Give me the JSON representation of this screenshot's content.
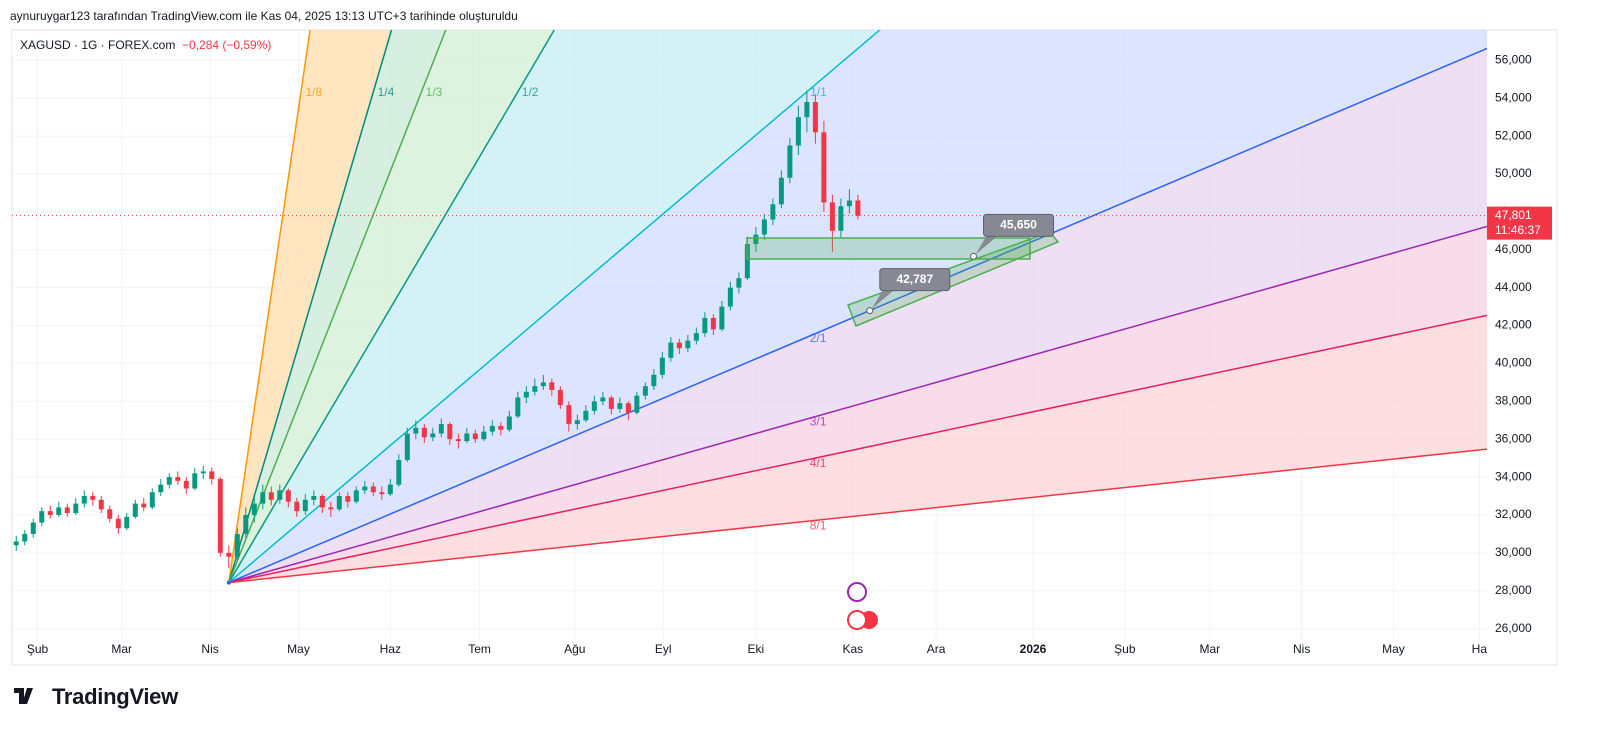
{
  "header": {
    "attribution": "aynuruygar123 tarafından TradingView.com ile Kas 04, 2025 13:13 UTC+3 tarihinde oluşturuldu",
    "logo": "TradingView"
  },
  "chart_data": {
    "type": "candlestick",
    "title": "XAGUSD · 1G · FOREX.com",
    "subtitle": "−0,284 (−0,59%)",
    "up_color": "#089981",
    "down_color": "#f23645",
    "candles": [
      [
        30.4,
        30.9,
        30.1,
        30.6
      ],
      [
        30.6,
        31.2,
        30.4,
        31.0
      ],
      [
        31.0,
        31.8,
        30.8,
        31.6
      ],
      [
        31.6,
        32.4,
        31.4,
        32.2
      ],
      [
        32.2,
        32.5,
        31.8,
        32.0
      ],
      [
        32.0,
        32.7,
        31.9,
        32.4
      ],
      [
        32.4,
        32.6,
        31.9,
        32.1
      ],
      [
        32.1,
        32.9,
        32.0,
        32.6
      ],
      [
        32.6,
        33.3,
        32.4,
        33.0
      ],
      [
        33.0,
        33.2,
        32.5,
        32.8
      ],
      [
        32.8,
        33.0,
        32.1,
        32.3
      ],
      [
        32.3,
        32.5,
        31.6,
        31.8
      ],
      [
        31.8,
        32.0,
        31.0,
        31.3
      ],
      [
        31.3,
        32.1,
        31.2,
        31.9
      ],
      [
        31.9,
        32.8,
        31.8,
        32.6
      ],
      [
        32.6,
        32.9,
        32.2,
        32.4
      ],
      [
        32.4,
        33.4,
        32.3,
        33.2
      ],
      [
        33.2,
        33.9,
        33.0,
        33.6
      ],
      [
        33.6,
        34.2,
        33.4,
        34.0
      ],
      [
        34.0,
        34.3,
        33.6,
        33.8
      ],
      [
        33.8,
        34.0,
        33.1,
        33.4
      ],
      [
        33.4,
        34.5,
        33.3,
        34.2
      ],
      [
        34.2,
        34.6,
        33.9,
        34.3
      ],
      [
        34.3,
        34.5,
        33.6,
        33.9
      ],
      [
        33.9,
        34.0,
        29.8,
        30.0
      ],
      [
        30.0,
        30.4,
        29.2,
        29.8
      ],
      [
        29.8,
        31.3,
        29.6,
        31.0
      ],
      [
        31.0,
        32.4,
        30.8,
        32.0
      ],
      [
        32.0,
        33.0,
        31.6,
        32.6
      ],
      [
        32.6,
        33.6,
        32.3,
        33.2
      ],
      [
        33.2,
        33.5,
        32.5,
        32.8
      ],
      [
        32.8,
        33.6,
        32.6,
        33.3
      ],
      [
        33.3,
        33.4,
        32.4,
        32.7
      ],
      [
        32.7,
        32.9,
        31.9,
        32.2
      ],
      [
        32.2,
        33.1,
        32.0,
        32.8
      ],
      [
        32.8,
        33.3,
        32.5,
        33.0
      ],
      [
        33.0,
        33.1,
        32.1,
        32.4
      ],
      [
        32.4,
        32.7,
        31.9,
        32.3
      ],
      [
        32.3,
        33.2,
        32.2,
        33.0
      ],
      [
        33.0,
        33.2,
        32.4,
        32.7
      ],
      [
        32.7,
        33.5,
        32.6,
        33.3
      ],
      [
        33.3,
        33.8,
        33.1,
        33.5
      ],
      [
        33.5,
        33.7,
        33.0,
        33.2
      ],
      [
        33.2,
        33.5,
        32.8,
        33.1
      ],
      [
        33.1,
        33.9,
        33.0,
        33.6
      ],
      [
        33.6,
        35.2,
        33.5,
        34.9
      ],
      [
        34.9,
        36.6,
        34.8,
        36.3
      ],
      [
        36.3,
        37.0,
        36.0,
        36.6
      ],
      [
        36.6,
        36.8,
        35.8,
        36.1
      ],
      [
        36.1,
        36.6,
        35.9,
        36.3
      ],
      [
        36.3,
        37.1,
        36.1,
        36.8
      ],
      [
        36.8,
        36.9,
        35.7,
        36.0
      ],
      [
        36.0,
        36.3,
        35.5,
        35.9
      ],
      [
        35.9,
        36.6,
        35.8,
        36.3
      ],
      [
        36.3,
        36.5,
        35.8,
        36.0
      ],
      [
        36.0,
        36.7,
        35.9,
        36.4
      ],
      [
        36.4,
        37.0,
        36.2,
        36.7
      ],
      [
        36.7,
        36.9,
        36.2,
        36.5
      ],
      [
        36.5,
        37.5,
        36.4,
        37.2
      ],
      [
        37.2,
        38.5,
        37.1,
        38.2
      ],
      [
        38.2,
        38.8,
        37.9,
        38.5
      ],
      [
        38.5,
        39.2,
        38.3,
        38.8
      ],
      [
        38.8,
        39.4,
        38.6,
        39.0
      ],
      [
        39.0,
        39.2,
        38.3,
        38.6
      ],
      [
        38.6,
        38.8,
        37.6,
        37.8
      ],
      [
        37.8,
        38.0,
        36.4,
        36.8
      ],
      [
        36.8,
        37.3,
        36.5,
        37.0
      ],
      [
        37.0,
        37.8,
        36.9,
        37.5
      ],
      [
        37.5,
        38.3,
        37.3,
        38.0
      ],
      [
        38.0,
        38.5,
        37.8,
        38.2
      ],
      [
        38.2,
        38.3,
        37.3,
        37.6
      ],
      [
        37.6,
        38.2,
        37.4,
        37.9
      ],
      [
        37.9,
        38.0,
        37.0,
        37.4
      ],
      [
        37.4,
        38.5,
        37.3,
        38.3
      ],
      [
        38.3,
        39.0,
        38.1,
        38.8
      ],
      [
        38.8,
        39.7,
        38.6,
        39.4
      ],
      [
        39.4,
        40.6,
        39.2,
        40.3
      ],
      [
        40.3,
        41.4,
        40.1,
        41.1
      ],
      [
        41.1,
        41.3,
        40.5,
        40.8
      ],
      [
        40.8,
        41.5,
        40.6,
        41.2
      ],
      [
        41.2,
        41.9,
        41.0,
        41.6
      ],
      [
        41.6,
        42.7,
        41.4,
        42.4
      ],
      [
        42.4,
        42.6,
        41.5,
        41.8
      ],
      [
        41.8,
        43.3,
        41.7,
        43.0
      ],
      [
        43.0,
        44.3,
        42.8,
        44.0
      ],
      [
        44.0,
        44.8,
        43.7,
        44.5
      ],
      [
        44.5,
        46.7,
        44.4,
        46.3
      ],
      [
        46.3,
        47.2,
        45.9,
        46.8
      ],
      [
        46.8,
        47.9,
        46.5,
        47.6
      ],
      [
        47.6,
        48.7,
        47.3,
        48.4
      ],
      [
        48.4,
        50.2,
        48.2,
        49.8
      ],
      [
        49.8,
        51.9,
        49.5,
        51.5
      ],
      [
        51.5,
        53.6,
        51.0,
        53.0
      ],
      [
        53.0,
        54.4,
        52.2,
        53.8
      ],
      [
        53.8,
        54.2,
        51.6,
        52.2
      ],
      [
        52.2,
        52.8,
        48.0,
        48.5
      ],
      [
        48.5,
        48.9,
        45.9,
        47.0
      ],
      [
        47.0,
        48.7,
        46.6,
        48.3
      ],
      [
        48.3,
        49.2,
        47.9,
        48.6
      ],
      [
        48.6,
        48.9,
        47.6,
        47.8
      ]
    ],
    "xlim": [
      -0.5,
      173
    ],
    "xticks": [
      {
        "value": 2.5,
        "label": "Şub"
      },
      {
        "value": 12.4,
        "label": "Mar"
      },
      {
        "value": 22.8,
        "label": "Nis"
      },
      {
        "value": 33.2,
        "label": "May"
      },
      {
        "value": 44,
        "label": "Haz"
      },
      {
        "value": 54.5,
        "label": "Tem"
      },
      {
        "value": 65.7,
        "label": "Ağu"
      },
      {
        "value": 76.1,
        "label": "Eyl"
      },
      {
        "value": 87,
        "label": "Eki"
      },
      {
        "value": 98.4,
        "label": "Kas"
      },
      {
        "value": 108.2,
        "label": "Ara"
      },
      {
        "value": 119.6,
        "label": "2026"
      },
      {
        "value": 130.4,
        "label": "Şub"
      },
      {
        "value": 140.4,
        "label": "Mar"
      },
      {
        "value": 151.2,
        "label": "Nis"
      },
      {
        "value": 162,
        "label": "May"
      },
      {
        "value": 172.1,
        "label": "Ha"
      }
    ],
    "ylim": [
      25.4,
      57.6
    ],
    "yticks": [
      {
        "value": 26,
        "label": "26,000"
      },
      {
        "value": 28,
        "label": "28,000"
      },
      {
        "value": 30,
        "label": "30,000"
      },
      {
        "value": 32,
        "label": "32,000"
      },
      {
        "value": 34,
        "label": "34,000"
      },
      {
        "value": 36,
        "label": "36,000"
      },
      {
        "value": 38,
        "label": "38,000"
      },
      {
        "value": 40,
        "label": "40,000"
      },
      {
        "value": 42,
        "label": "42,000"
      },
      {
        "value": 44,
        "label": "44,000"
      },
      {
        "value": 46,
        "label": "46,000"
      },
      {
        "value": 48,
        "label": "48,000"
      },
      {
        "value": 50,
        "label": "50,000"
      },
      {
        "value": 52,
        "label": "52,000"
      },
      {
        "value": 54,
        "label": "54,000"
      },
      {
        "value": 56,
        "label": "56,000"
      }
    ],
    "grid": true,
    "last_price": {
      "value": 47.801,
      "label": "47,801"
    },
    "countdown": "11:46:37",
    "gann_fan": {
      "origin": [
        25,
        28.43
      ],
      "levels": [
        {
          "label": "1/8",
          "slope": 3.05,
          "color": "#ff9800",
          "fill": "#ffe0b2"
        },
        {
          "label": "1/4",
          "slope": 1.524,
          "color": "#00897b",
          "fill": "#cdebd9"
        },
        {
          "label": "1/3",
          "slope": 1.143,
          "color": "#4caf50",
          "fill": "#d6efd8"
        },
        {
          "label": "1/2",
          "slope": 0.762,
          "color": "#089981",
          "fill": "#c9eff2"
        },
        {
          "label": "1/1",
          "slope": 0.381,
          "color": "#00bcd4",
          "fill": "#d3ddff"
        },
        {
          "label": "2/1",
          "slope": 0.1905,
          "color": "#2962ff",
          "fill": "#ead7f3"
        },
        {
          "label": "3/1",
          "slope": 0.127,
          "color": "#9c27b0",
          "fill": "#f6d3e3"
        },
        {
          "label": "4/1",
          "slope": 0.0953,
          "color": "#e91e63",
          "fill": "#fcd6da"
        },
        {
          "label": "8/1",
          "slope": 0.0476,
          "color": "#f23645"
        }
      ]
    },
    "annotations": [
      {
        "x": 112.6,
        "value": 45.65,
        "label": "45,650"
      },
      {
        "x": 100.4,
        "value": 42.787,
        "label": "42,787"
      }
    ]
  }
}
